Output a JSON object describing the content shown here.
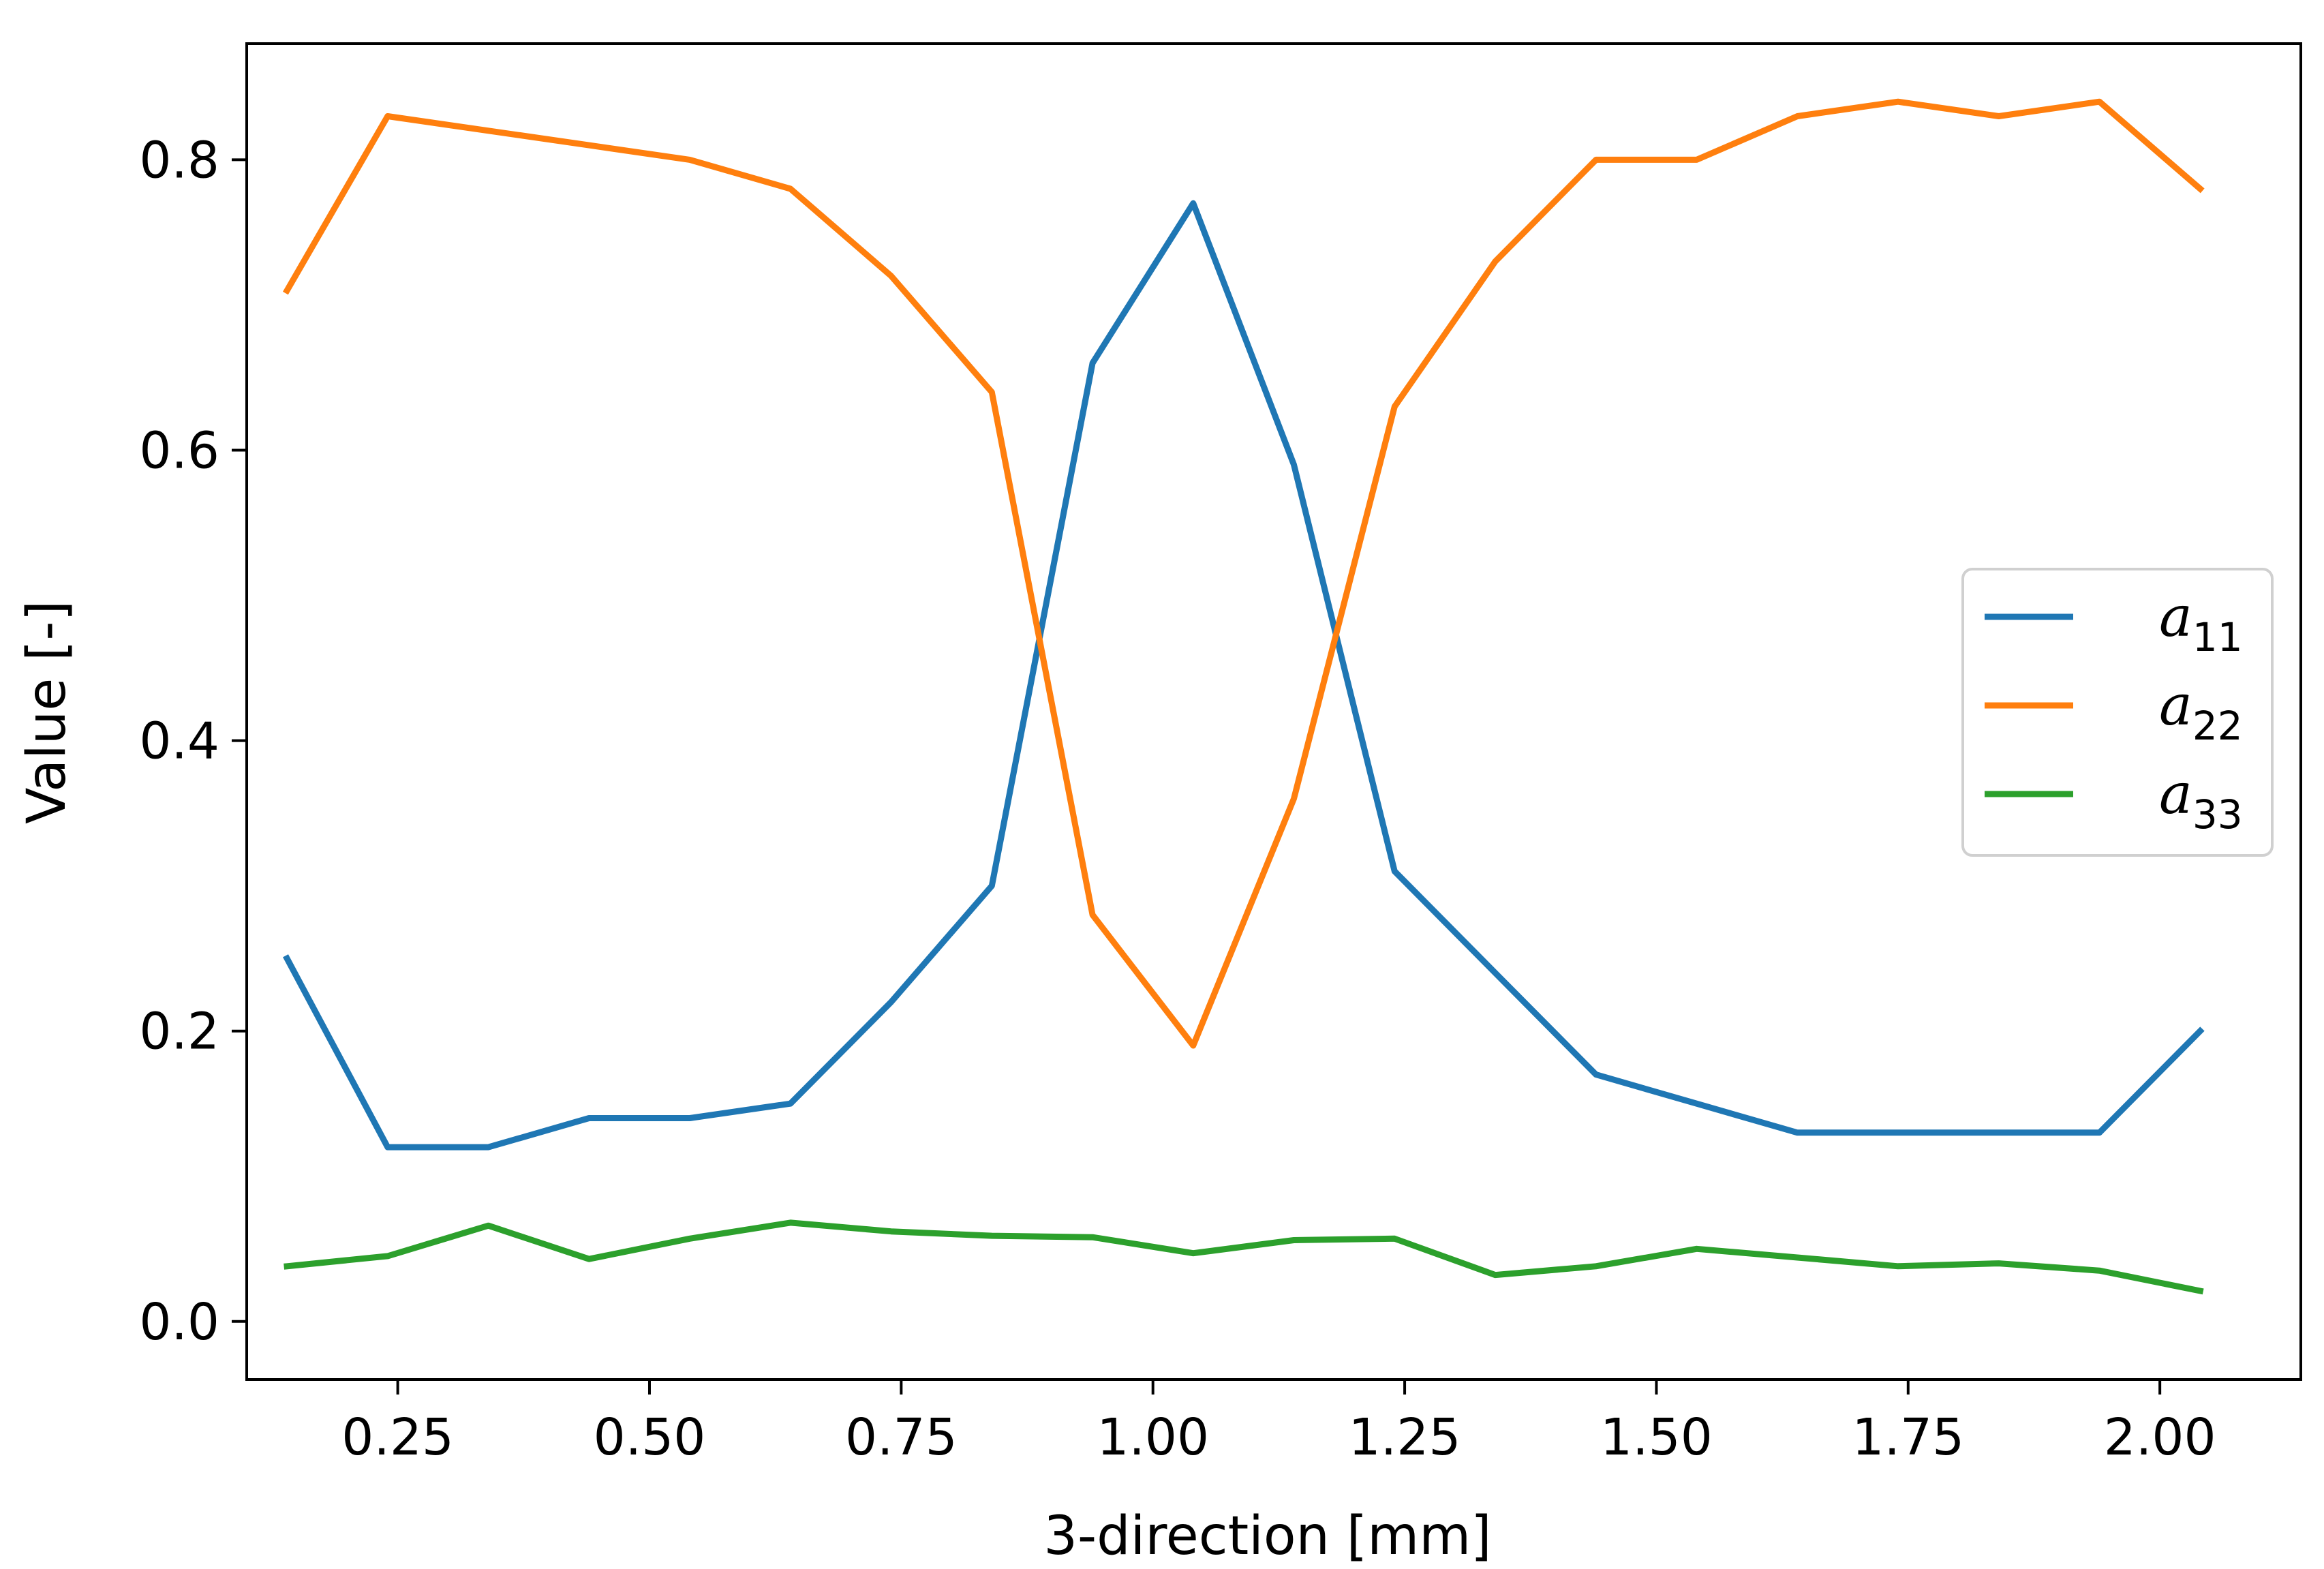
{
  "chart_data": {
    "type": "line",
    "title": "",
    "xlabel": "3-direction [mm]",
    "ylabel": "Value [-]",
    "xlim": [
      0.1,
      2.14
    ],
    "ylim": [
      -0.04,
      0.88
    ],
    "xticks": [
      "0.25",
      "0.50",
      "0.75",
      "1.00",
      "1.25",
      "1.50",
      "1.75",
      "2.00"
    ],
    "yticks": [
      "0.0",
      "0.2",
      "0.4",
      "0.6",
      "0.8"
    ],
    "grid": false,
    "legend_position": "right",
    "x": [
      0.14,
      0.24,
      0.34,
      0.44,
      0.54,
      0.64,
      0.74,
      0.84,
      0.94,
      1.04,
      1.14,
      1.24,
      1.34,
      1.44,
      1.54,
      1.64,
      1.74,
      1.84,
      1.94,
      2.04
    ],
    "series": [
      {
        "name": "a",
        "sub": "11",
        "color": "#1f77b4",
        "values": [
          0.25,
          0.12,
          0.12,
          0.14,
          0.14,
          0.15,
          0.22,
          0.3,
          0.66,
          0.77,
          0.59,
          0.31,
          0.24,
          0.17,
          0.15,
          0.13,
          0.13,
          0.13,
          0.13,
          0.2
        ]
      },
      {
        "name": "a",
        "sub": "22",
        "color": "#ff7f0e",
        "values": [
          0.71,
          0.83,
          0.82,
          0.81,
          0.8,
          0.78,
          0.72,
          0.64,
          0.28,
          0.19,
          0.36,
          0.63,
          0.73,
          0.8,
          0.8,
          0.83,
          0.84,
          0.83,
          0.84,
          0.78
        ]
      },
      {
        "name": "a",
        "sub": "33",
        "color": "#2ca02c",
        "values": [
          0.038,
          0.045,
          0.066,
          0.043,
          0.057,
          0.068,
          0.062,
          0.059,
          0.058,
          0.047,
          0.056,
          0.057,
          0.032,
          0.038,
          0.05,
          0.044,
          0.038,
          0.04,
          0.035,
          0.021
        ]
      }
    ]
  }
}
